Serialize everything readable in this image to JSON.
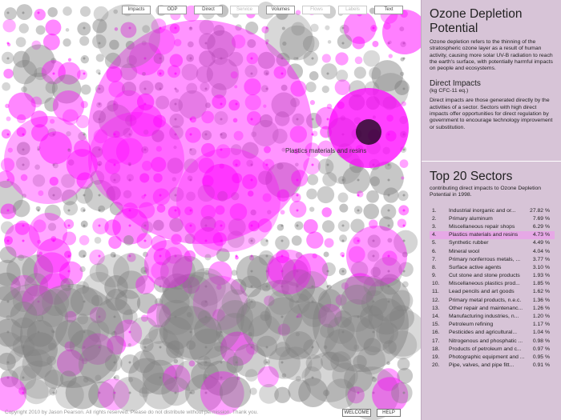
{
  "toolbar": {
    "buttons": [
      {
        "label": "Impacts",
        "enabled": true
      },
      {
        "label": "ODP",
        "enabled": true
      },
      {
        "label": "Direct",
        "enabled": true
      },
      {
        "label": "Service",
        "enabled": false
      },
      {
        "label": "Volumes",
        "enabled": true
      },
      {
        "label": "Flows",
        "enabled": false
      },
      {
        "label": "Labels",
        "enabled": false
      },
      {
        "label": "Text",
        "enabled": true
      }
    ]
  },
  "viz": {
    "hover_label": "Plastics materials and resins",
    "colors": {
      "highlight": "#ff00ff",
      "gray": "#7f7f7f",
      "selected": "#000000"
    }
  },
  "footer": {
    "copyright": "Copyright 2010 by Jason Pearson.  All rights reserved.  Please do not distribute without permission.  Thank you.",
    "welcome_label": "WELCOME",
    "help_label": "HELP"
  },
  "panel": {
    "title": "Ozone Depletion Potential",
    "description": "Ozone depletion refers to the thinning of the stratospheric ozone layer as a result of human activity, causing more solar UV-B radiation to reach the earth's surface, with potentially harmful impacts on people and ecosystems.",
    "subheading": "Direct Impacts",
    "unit": "(kg CFC-11 eq.)",
    "sub_description": "Direct impacts are those generated directly by the activities of a sector.  Sectors with high direct impacts offer opportunities for direct regulation by government to encourage technology improvement or substitution.",
    "list_title": "Top 20 Sectors",
    "list_description": "contributing direct impacts to Ozone Depletion Potential in 1998.",
    "active_index": 3,
    "sectors": [
      {
        "num": "1.",
        "name": "Industrial inorganic and or...",
        "pct": "27.82 %"
      },
      {
        "num": "2.",
        "name": "Primary aluminum",
        "pct": "7.69 %"
      },
      {
        "num": "3.",
        "name": "Miscellaneous repair shops",
        "pct": "6.29 %"
      },
      {
        "num": "4.",
        "name": "Plastics materials and resins",
        "pct": "4.73 %"
      },
      {
        "num": "5.",
        "name": "Synthetic rubber",
        "pct": "4.49 %"
      },
      {
        "num": "6.",
        "name": "Mineral wool",
        "pct": "4.04 %"
      },
      {
        "num": "7.",
        "name": "Primary nonferrous metals, ...",
        "pct": "3.77 %"
      },
      {
        "num": "8.",
        "name": "Surface active agents",
        "pct": "3.10 %"
      },
      {
        "num": "9.",
        "name": "Cut stone and stone products",
        "pct": "1.93 %"
      },
      {
        "num": "10.",
        "name": "Miscellaneous plastics prod...",
        "pct": "1.85 %"
      },
      {
        "num": "11.",
        "name": "Lead pencils and art goods",
        "pct": "1.62 %"
      },
      {
        "num": "12.",
        "name": "Primary metal products, n.e.c.",
        "pct": "1.36 %"
      },
      {
        "num": "13.",
        "name": "Other repair and maintenanc...",
        "pct": "1.26 %"
      },
      {
        "num": "14.",
        "name": "Manufacturing industries, n...",
        "pct": "1.20 %"
      },
      {
        "num": "15.",
        "name": "Petroleum refining",
        "pct": "1.17 %"
      },
      {
        "num": "16.",
        "name": "Pesticides and agricultural...",
        "pct": "1.04 %"
      },
      {
        "num": "17.",
        "name": "Nitrogenous and phosphatic ...",
        "pct": "0.98 %"
      },
      {
        "num": "18.",
        "name": "Products of petroleum and c...",
        "pct": "0.97 %"
      },
      {
        "num": "19.",
        "name": "Photographic equipment and ...",
        "pct": "0.95 %"
      },
      {
        "num": "20.",
        "name": "Pipe, valves, and pipe fitt...",
        "pct": "0.91 %"
      }
    ]
  }
}
